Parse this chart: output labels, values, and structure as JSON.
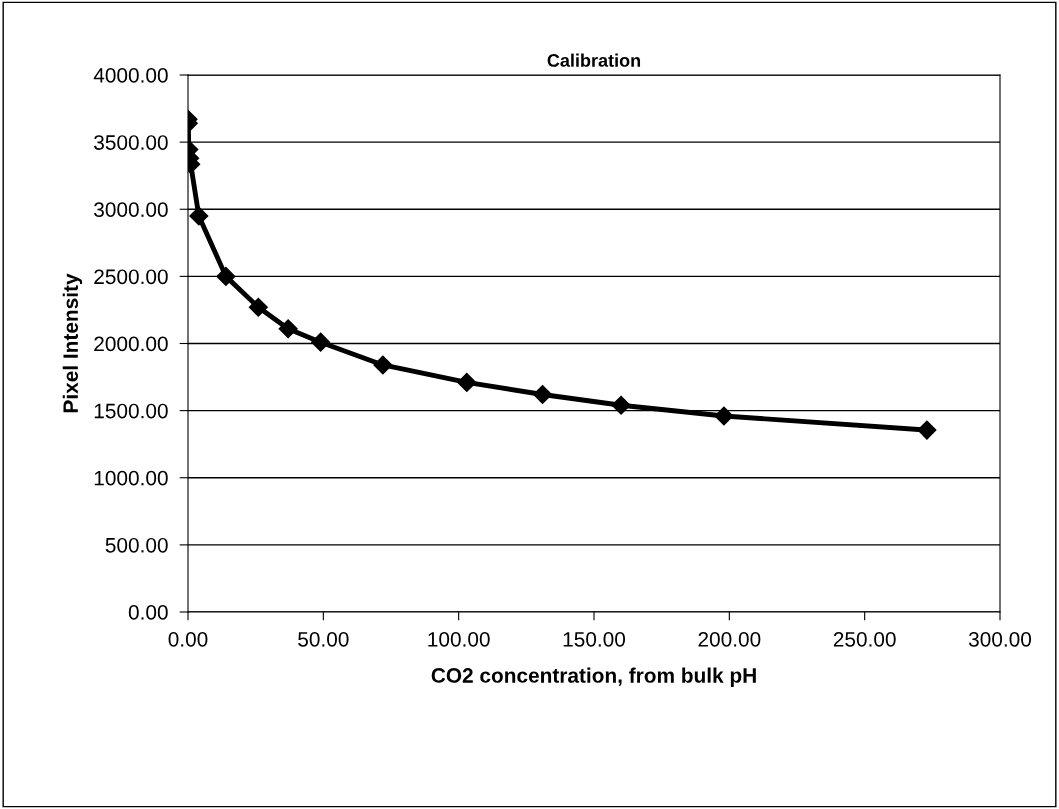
{
  "chart_data": {
    "type": "line",
    "title": "Calibration",
    "xlabel": "CO2 concentration, from bulk pH",
    "ylabel": "Pixel Intensity",
    "x": [
      0,
      0.1,
      0.3,
      0.6,
      1.0,
      4,
      14,
      26,
      37,
      49,
      72,
      103,
      131,
      160,
      198,
      273
    ],
    "series": [
      {
        "color": "#000000",
        "values": [
          3670,
          3640,
          3445,
          3380,
          3335,
          2950,
          2500,
          2270,
          2110,
          2010,
          1840,
          1710,
          1620,
          1540,
          1460,
          1355
        ]
      }
    ],
    "xlim": [
      0,
      300
    ],
    "xticks": [
      {
        "value": 0,
        "label": "0.00"
      },
      {
        "value": 50,
        "label": "50.00"
      },
      {
        "value": 100,
        "label": "100.00"
      },
      {
        "value": 150,
        "label": "150.00"
      },
      {
        "value": 200,
        "label": "200.00"
      },
      {
        "value": 250,
        "label": "250.00"
      },
      {
        "value": 300,
        "label": "300.00"
      }
    ],
    "ylim": [
      0,
      4000
    ],
    "yticks": [
      {
        "value": 0,
        "label": "0.00"
      },
      {
        "value": 500,
        "label": "500.00"
      },
      {
        "value": 1000,
        "label": "1000.00"
      },
      {
        "value": 1500,
        "label": "1500.00"
      },
      {
        "value": 2000,
        "label": "2000.00"
      },
      {
        "value": 2500,
        "label": "2500.00"
      },
      {
        "value": 3000,
        "label": "3000.00"
      },
      {
        "value": 3500,
        "label": "3500.00"
      },
      {
        "value": 4000,
        "label": "4000.00"
      }
    ],
    "grid": "y",
    "marker": "diamond",
    "line_style": "solid",
    "legend": false
  }
}
